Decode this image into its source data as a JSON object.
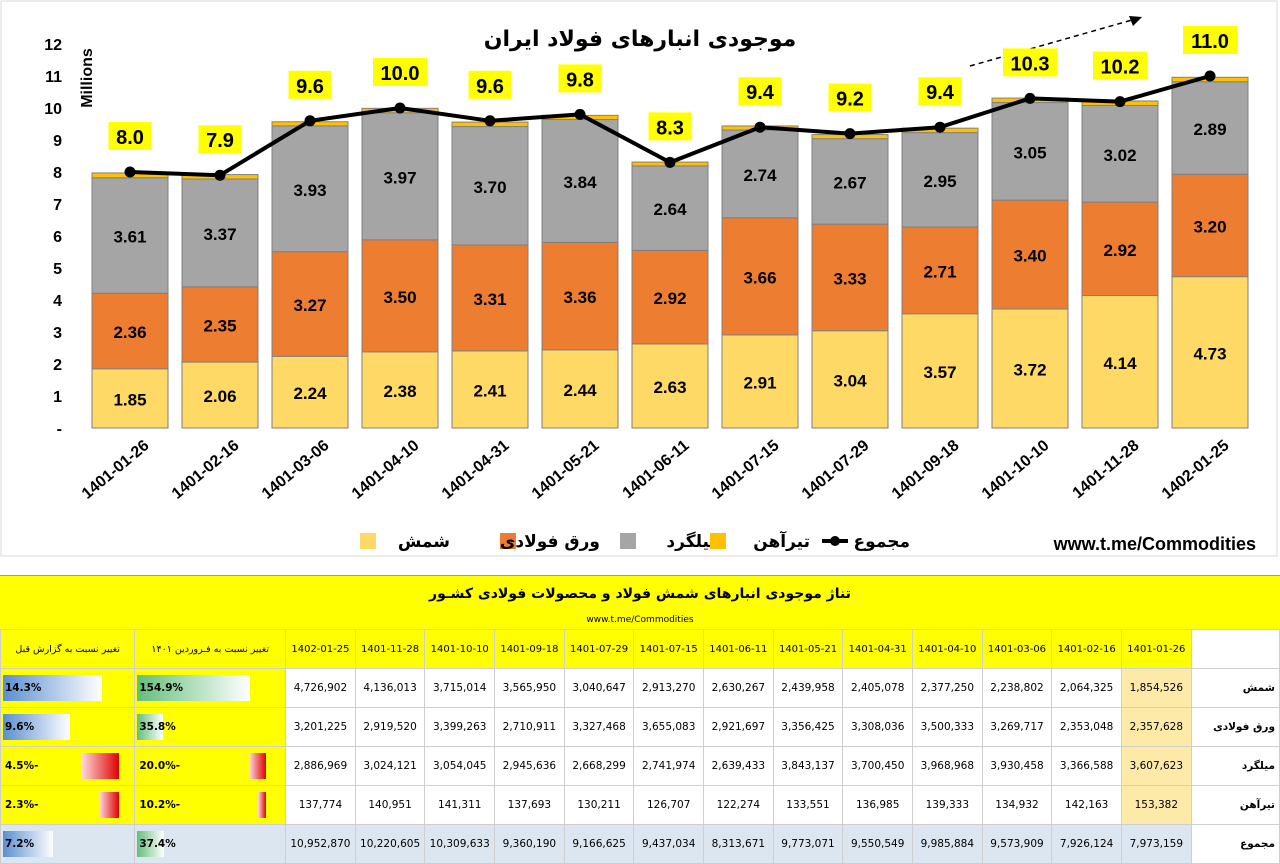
{
  "chart_data": {
    "type": "bar",
    "stacked": true,
    "title": "موجودی انبارهای فولاد ایران",
    "ylabel": "Millions",
    "ylim": [
      0,
      12
    ],
    "yticks": [
      "-",
      "1",
      "2",
      "3",
      "4",
      "5",
      "6",
      "7",
      "8",
      "9",
      "10",
      "11",
      "12"
    ],
    "categories": [
      "1401-01-26",
      "1401-02-16",
      "1401-03-06",
      "1401-04-10",
      "1401-04-31",
      "1401-05-21",
      "1401-06-11",
      "1401-07-15",
      "1401-07-29",
      "1401-09-18",
      "1401-10-10",
      "1401-11-28",
      "1402-01-25"
    ],
    "series": [
      {
        "name": "شمش",
        "color": "#ffd966",
        "values": [
          1.85,
          2.06,
          2.24,
          2.38,
          2.41,
          2.44,
          2.63,
          2.91,
          3.04,
          3.57,
          3.72,
          4.14,
          4.73
        ]
      },
      {
        "name": "ورق فولادی",
        "color": "#ed7d31",
        "values": [
          2.36,
          2.35,
          3.27,
          3.5,
          3.31,
          3.36,
          2.92,
          3.66,
          3.33,
          2.71,
          3.4,
          2.92,
          3.2
        ]
      },
      {
        "name": "میلگرد",
        "color": "#a5a5a5",
        "values": [
          3.61,
          3.37,
          3.93,
          3.97,
          3.7,
          3.84,
          2.64,
          2.74,
          2.67,
          2.95,
          3.05,
          3.02,
          2.89
        ]
      },
      {
        "name": "تیرآهن",
        "color": "#ffc000",
        "values": [
          0.15,
          0.14,
          0.13,
          0.14,
          0.14,
          0.13,
          0.12,
          0.13,
          0.13,
          0.14,
          0.14,
          0.14,
          0.14
        ]
      }
    ],
    "total": {
      "name": "مجموع",
      "color": "#000000",
      "values": [
        8.0,
        7.9,
        9.6,
        10.0,
        9.6,
        9.8,
        8.3,
        9.4,
        9.2,
        9.4,
        10.3,
        10.2,
        11.0
      ]
    },
    "total_labels": [
      "8.0",
      "7.9",
      "9.6",
      "10.0",
      "9.6",
      "9.8",
      "8.3",
      "9.4",
      "9.2",
      "9.4",
      "10.3",
      "10.2",
      "11.0"
    ],
    "value_labels": {
      "شمش": [
        "1.85",
        "2.06",
        "2.24",
        "2.38",
        "2.41",
        "2.44",
        "2.63",
        "2.91",
        "3.04",
        "3.57",
        "3.72",
        "4.14",
        "4.73"
      ],
      "ورق فولادی": [
        "2.36",
        "2.35",
        "3.27",
        "3.50",
        "3.31",
        "3.36",
        "2.92",
        "3.66",
        "3.33",
        "2.71",
        "3.40",
        "2.92",
        "3.20"
      ],
      "میلگرد": [
        "3.61",
        "3.37",
        "3.93",
        "3.97",
        "3.70",
        "3.84",
        "2.64",
        "2.74",
        "2.67",
        "2.95",
        "3.05",
        "3.02",
        "2.89"
      ]
    },
    "legend": [
      "شمش",
      "ورق فولادی",
      "میلگرد",
      "تیرآهن",
      "مجموع"
    ],
    "legend_position": "bottom",
    "grid": false,
    "watermark_url": "www.t.me/Commodities"
  },
  "table": {
    "title": "تناژ موجودی انبارهای شمش فولاد و محصولات فولادی کشـور",
    "subtitle": "www.t.me/Commodities",
    "dates": [
      "1401-01-26",
      "1401-02-16",
      "1401-03-06",
      "1401-04-10",
      "1401-04-31",
      "1401-05-21",
      "1401-06-11",
      "1401-07-15",
      "1401-07-29",
      "1401-09-18",
      "1401-10-10",
      "1401-11-28",
      "1402-01-25"
    ],
    "change_header_base": "تغییر نسبت به فـرور‌دین ۱۴۰۱",
    "change_header_prev": "تغییر نسبت به گزارش قبل",
    "rows": [
      {
        "name": "شمش",
        "values": [
          "1,854,526",
          "2,064,325",
          "2,238,802",
          "2,377,250",
          "2,405,078",
          "2,439,958",
          "2,630,267",
          "2,913,270",
          "3,040,647",
          "3,565,950",
          "3,715,014",
          "4,136,013",
          "4,726,902"
        ],
        "change_base": "154.9%",
        "change_base_val": 154.9,
        "change_prev": "14.3%",
        "change_prev_val": 14.3
      },
      {
        "name": "ورق فولادی",
        "values": [
          "2,357,628",
          "2,353,048",
          "3,269,717",
          "3,500,333",
          "3,308,036",
          "3,356,425",
          "2,921,697",
          "3,655,083",
          "3,327,468",
          "2,710,911",
          "3,399,263",
          "2,919,520",
          "3,201,225"
        ],
        "change_base": "35.8%",
        "change_base_val": 35.8,
        "change_prev": "9.6%",
        "change_prev_val": 9.6
      },
      {
        "name": "میلگرد",
        "values": [
          "3,607,623",
          "3,366,588",
          "3,930,458",
          "3,968,968",
          "3,700,450",
          "3,843,137",
          "2,639,433",
          "2,741,974",
          "2,668,299",
          "2,945,636",
          "3,054,045",
          "3,024,121",
          "2,886,969"
        ],
        "change_base": "-20.0%",
        "change_base_val": -20.0,
        "change_prev": "-4.5%",
        "change_prev_val": -4.5
      },
      {
        "name": "تیرآهن",
        "values": [
          "153,382",
          "142,163",
          "134,932",
          "139,333",
          "136,985",
          "133,551",
          "122,274",
          "126,707",
          "130,211",
          "137,693",
          "141,311",
          "140,951",
          "137,774"
        ],
        "change_base": "-10.2%",
        "change_base_val": -10.2,
        "change_prev": "-2.3%",
        "change_prev_val": -2.3
      },
      {
        "name": "مجموع",
        "values": [
          "7,973,159",
          "7,926,124",
          "9,573,909",
          "9,985,884",
          "9,550,549",
          "9,773,071",
          "8,313,671",
          "9,437,034",
          "9,166,625",
          "9,360,190",
          "10,309,633",
          "10,220,605",
          "10,952,870"
        ],
        "change_base": "37.4%",
        "change_base_val": 37.4,
        "change_prev": "7.2%",
        "change_prev_val": 7.2
      }
    ]
  }
}
